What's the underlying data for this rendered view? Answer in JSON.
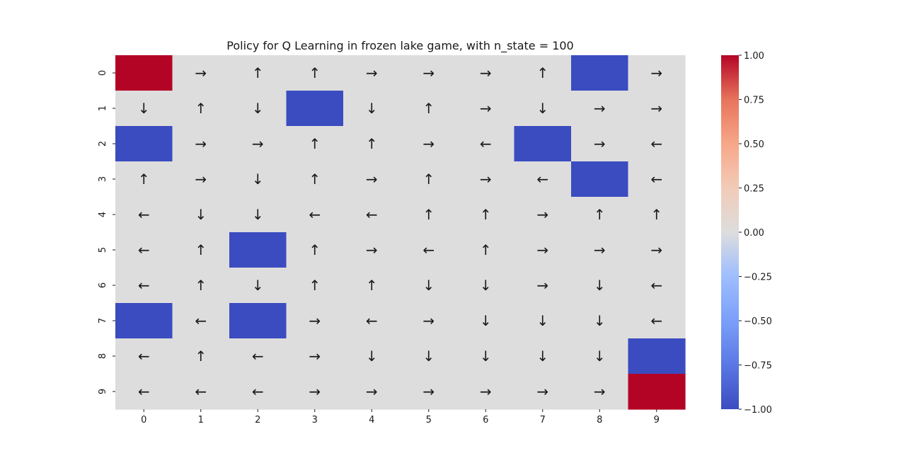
{
  "chart_data": {
    "type": "heatmap",
    "title": "Policy for Q Learning in frozen lake game, with n_state = 100",
    "xlabel": "",
    "ylabel": "",
    "x_tick_labels": [
      "0",
      "1",
      "2",
      "3",
      "4",
      "5",
      "6",
      "7",
      "8",
      "9"
    ],
    "y_tick_labels": [
      "0",
      "1",
      "2",
      "3",
      "4",
      "5",
      "6",
      "7",
      "8",
      "9"
    ],
    "values": [
      [
        1,
        0,
        0,
        0,
        0,
        0,
        0,
        0,
        -1,
        0
      ],
      [
        0,
        0,
        0,
        -1,
        0,
        0,
        0,
        0,
        0,
        0
      ],
      [
        -1,
        0,
        0,
        0,
        0,
        0,
        0,
        -1,
        0,
        0
      ],
      [
        0,
        0,
        0,
        0,
        0,
        0,
        0,
        0,
        -1,
        0
      ],
      [
        0,
        0,
        0,
        0,
        0,
        0,
        0,
        0,
        0,
        0
      ],
      [
        0,
        0,
        -1,
        0,
        0,
        0,
        0,
        0,
        0,
        0
      ],
      [
        0,
        0,
        0,
        0,
        0,
        0,
        0,
        0,
        0,
        0
      ],
      [
        -1,
        0,
        -1,
        0,
        0,
        0,
        0,
        0,
        0,
        0
      ],
      [
        0,
        0,
        0,
        0,
        0,
        0,
        0,
        0,
        0,
        -1
      ],
      [
        0,
        0,
        0,
        0,
        0,
        0,
        0,
        0,
        0,
        1
      ]
    ],
    "annotations": [
      [
        "",
        "→",
        "↑",
        "↑",
        "→",
        "→",
        "→",
        "↑",
        "",
        "→"
      ],
      [
        "↓",
        "↑",
        "↓",
        "",
        "↓",
        "↑",
        "→",
        "↓",
        "→",
        "→"
      ],
      [
        "",
        "→",
        "→",
        "↑",
        "↑",
        "→",
        "←",
        "",
        "→",
        "←"
      ],
      [
        "↑",
        "→",
        "↓",
        "↑",
        "→",
        "↑",
        "→",
        "←",
        "",
        "←"
      ],
      [
        "←",
        "↓",
        "↓",
        "←",
        "←",
        "↑",
        "↑",
        "→",
        "↑",
        "↑"
      ],
      [
        "←",
        "↑",
        "",
        "↑",
        "→",
        "←",
        "↑",
        "→",
        "→",
        "→"
      ],
      [
        "←",
        "↑",
        "↓",
        "↑",
        "↑",
        "↓",
        "↓",
        "→",
        "↓",
        "←"
      ],
      [
        "",
        "←",
        "",
        "→",
        "←",
        "→",
        "↓",
        "↓",
        "↓",
        "←"
      ],
      [
        "←",
        "↑",
        "←",
        "→",
        "↓",
        "↓",
        "↓",
        "↓",
        "↓",
        ""
      ],
      [
        "←",
        "←",
        "←",
        "→",
        "→",
        "→",
        "→",
        "→",
        "→",
        ""
      ]
    ],
    "colormap": "coolwarm",
    "colors": {
      "min": "#3b4cc0",
      "mid": "#dddddd",
      "max": "#b40426"
    },
    "vmin": -1.0,
    "vmax": 1.0,
    "colorbar_ticks": [
      1.0,
      0.75,
      0.5,
      0.25,
      0.0,
      -0.25,
      -0.5,
      -0.75,
      -1.0
    ],
    "colorbar_tick_labels": [
      "1.00",
      "0.75",
      "0.50",
      "0.25",
      "0.00",
      "−0.25",
      "−0.50",
      "−0.75",
      "−1.00"
    ],
    "grid": false,
    "legend": "colorbar-right"
  }
}
